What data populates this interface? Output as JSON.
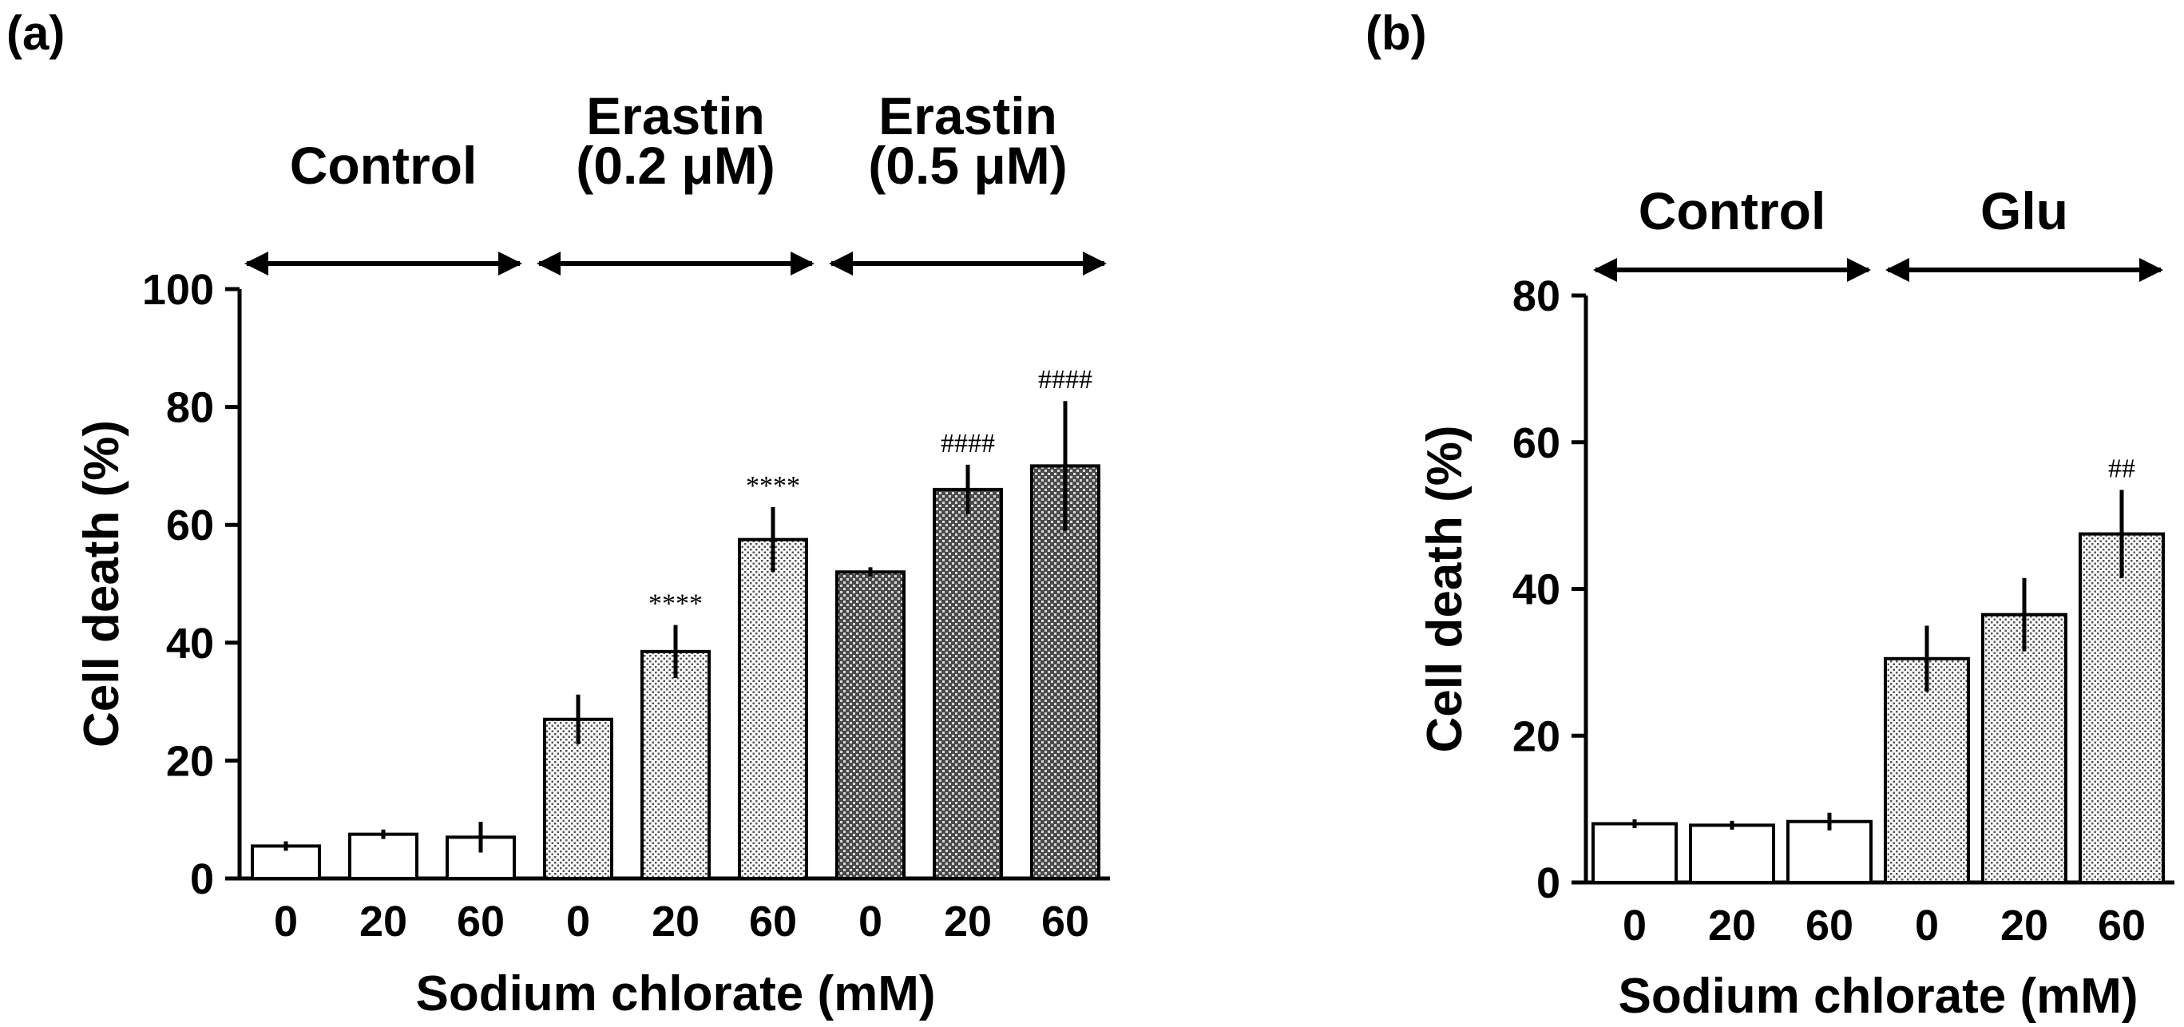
{
  "chart_data": [
    {
      "panel": "(a)",
      "type": "bar",
      "groups": [
        {
          "label_lines": [
            "Control"
          ],
          "pattern": "white"
        },
        {
          "label_lines": [
            "Erastin",
            "(0.2 μM)"
          ],
          "pattern": "light"
        },
        {
          "label_lines": [
            "Erastin",
            "(0.5 μM)"
          ],
          "pattern": "dark"
        }
      ],
      "categories": [
        "0",
        "20",
        "60",
        "0",
        "20",
        "60",
        "0",
        "20",
        "60"
      ],
      "values": [
        5.5,
        7.5,
        7,
        27,
        38.5,
        57.5,
        52,
        66,
        70
      ],
      "errors": [
        0.8,
        0.8,
        2.6,
        4.2,
        4.5,
        5.5,
        0.8,
        4.2,
        11
      ],
      "bar_group": [
        0,
        0,
        0,
        1,
        1,
        1,
        2,
        2,
        2
      ],
      "annotations": [
        "",
        "",
        "",
        "",
        "****",
        "****",
        "",
        "####",
        "####"
      ],
      "ylim": [
        0,
        100
      ],
      "yticks": [
        "0",
        "20",
        "40",
        "60",
        "80",
        "100"
      ],
      "ylabel": "Cell death (%)",
      "xlabel": "Sodium chlorate (mM)"
    },
    {
      "panel": "(b)",
      "type": "bar",
      "groups": [
        {
          "label_lines": [
            "Control"
          ],
          "pattern": "white"
        },
        {
          "label_lines": [
            "Glu"
          ],
          "pattern": "light"
        }
      ],
      "categories": [
        "0",
        "20",
        "60",
        "0",
        "20",
        "60"
      ],
      "values": [
        8,
        7.8,
        8.3,
        30.5,
        36.5,
        47.5
      ],
      "errors": [
        0.6,
        0.6,
        1.2,
        4.5,
        5,
        6
      ],
      "bar_group": [
        0,
        0,
        0,
        1,
        1,
        1
      ],
      "annotations": [
        "",
        "",
        "",
        "",
        "",
        "##"
      ],
      "ylim": [
        0,
        80
      ],
      "yticks": [
        "0",
        "20",
        "40",
        "60",
        "80"
      ],
      "ylabel": "Cell death (%)",
      "xlabel": "Sodium chlorate (mM)"
    }
  ]
}
